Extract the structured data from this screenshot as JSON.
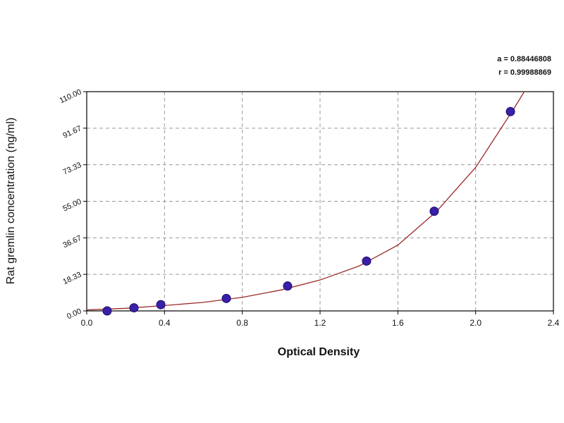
{
  "chart_data": {
    "type": "scatter",
    "xlabel": "Optical Density",
    "ylabel": "Rat gremlin concentration (ng/ml)",
    "annotations": [
      "a = 0.88446808",
      "r = 0.99988869"
    ],
    "x": [
      0.105,
      0.243,
      0.381,
      0.718,
      1.033,
      1.439,
      1.787,
      2.179
    ],
    "values": [
      0,
      1.56,
      3.12,
      6.25,
      12.5,
      25,
      50,
      100
    ],
    "color": "#3a1fa8",
    "curve": {
      "x": [
        0,
        0.2,
        0.4,
        0.6,
        0.8,
        1.0,
        1.2,
        1.4,
        1.6,
        1.8,
        2.0,
        2.2,
        2.25
      ],
      "values": [
        0.5,
        1.3,
        2.7,
        4.3,
        6.8,
        10.5,
        15.5,
        22.5,
        33,
        50,
        72,
        102,
        110
      ],
      "color": "#9b2a2a"
    },
    "xlim": [
      0,
      2.4
    ],
    "ylim": [
      0,
      110
    ],
    "xticks": [
      {
        "value": 0,
        "label": "0.0"
      },
      0.4,
      0.8,
      1.2,
      1.6,
      {
        "value": 2,
        "label": "2.0"
      },
      2.4
    ],
    "yticks": [
      {
        "value": 0,
        "label": "0.00"
      },
      18.33,
      36.67,
      {
        "value": 55,
        "label": "55.00"
      },
      73.33,
      91.67,
      {
        "value": 110,
        "label": "110.00"
      }
    ],
    "grid": true
  }
}
